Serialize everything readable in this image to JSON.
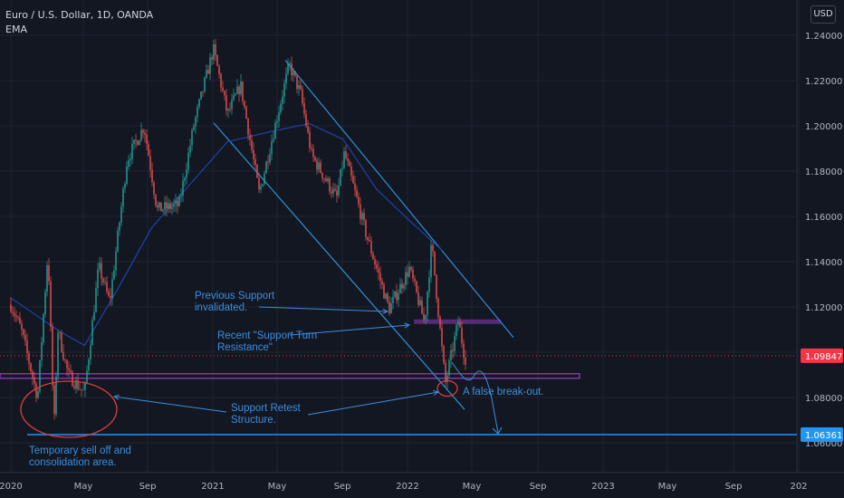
{
  "header": {
    "title": "Euro / U.S. Dollar, 1D, OANDA",
    "indicator": "EMA",
    "currency": "USD"
  },
  "chart_data": {
    "type": "candlestick",
    "title": "Euro / U.S. Dollar, 1D, OANDA",
    "x_ticks": [
      "2020",
      "May",
      "Sep",
      "2021",
      "May",
      "Sep",
      "2022",
      "May",
      "Sep",
      "2023",
      "May",
      "Sep",
      "202"
    ],
    "y_ticks": [
      "1.24000",
      "1.22000",
      "1.20000",
      "1.18000",
      "1.16000",
      "1.14000",
      "1.12000",
      "1.10000",
      "1.08000",
      "1.06000"
    ],
    "ylim": [
      1.052,
      1.246
    ],
    "last_price_label": "1.09847",
    "last_price": 1.09847,
    "horizontal_level_label": "1.06361",
    "horizontal_level": 1.06361,
    "price_path": [
      [
        "2020-01-01",
        1.121
      ],
      [
        "2020-01-20",
        1.11
      ],
      [
        "2020-02-19",
        1.08
      ],
      [
        "2020-03-09",
        1.145
      ],
      [
        "2020-03-20",
        1.066
      ],
      [
        "2020-03-27",
        1.11
      ],
      [
        "2020-04-15",
        1.09
      ],
      [
        "2020-05-15",
        1.082
      ],
      [
        "2020-06-10",
        1.138
      ],
      [
        "2020-06-30",
        1.122
      ],
      [
        "2020-08-01",
        1.185
      ],
      [
        "2020-09-01",
        1.2
      ],
      [
        "2020-09-25",
        1.163
      ],
      [
        "2020-11-04",
        1.165
      ],
      [
        "2020-12-01",
        1.2
      ],
      [
        "2021-01-06",
        1.234
      ],
      [
        "2021-02-01",
        1.205
      ],
      [
        "2021-02-25",
        1.218
      ],
      [
        "2021-03-31",
        1.17
      ],
      [
        "2021-05-25",
        1.227
      ],
      [
        "2021-06-15",
        1.214
      ],
      [
        "2021-07-05",
        1.187
      ],
      [
        "2021-08-20",
        1.168
      ],
      [
        "2021-09-03",
        1.188
      ],
      [
        "2021-10-12",
        1.153
      ],
      [
        "2021-11-24",
        1.119
      ],
      [
        "2021-12-31",
        1.137
      ],
      [
        "2022-01-28",
        1.113
      ],
      [
        "2022-02-10",
        1.148
      ],
      [
        "2022-03-07",
        1.086
      ],
      [
        "2022-03-31",
        1.114
      ],
      [
        "2022-04-12",
        1.097
      ],
      [
        "2022-04-14",
        1.098
      ]
    ],
    "ema_path": [
      [
        "2020-01-01",
        1.124
      ],
      [
        "2020-04-01",
        1.109
      ],
      [
        "2020-05-15",
        1.103
      ],
      [
        "2020-07-15",
        1.128
      ],
      [
        "2020-09-15",
        1.155
      ],
      [
        "2020-12-01",
        1.176
      ],
      [
        "2021-02-01",
        1.193
      ],
      [
        "2021-05-01",
        1.198
      ],
      [
        "2021-07-01",
        1.201
      ],
      [
        "2021-09-01",
        1.194
      ],
      [
        "2021-11-01",
        1.172
      ],
      [
        "2022-01-01",
        1.158
      ],
      [
        "2022-03-01",
        1.145
      ]
    ],
    "annotations": [
      {
        "name": "previous-support",
        "text": [
          "Previous Support",
          "invalidated."
        ]
      },
      {
        "name": "support-turn-resistance",
        "text": [
          "Recent \"Support Turn",
          "Resistance\""
        ]
      },
      {
        "name": "support-retest",
        "text": [
          "Support Retest",
          "Structure."
        ]
      },
      {
        "name": "temporary-selloff",
        "text": [
          "Temporary sell off and",
          "consolidation area."
        ]
      },
      {
        "name": "false-breakout",
        "text": [
          "A false break-out."
        ]
      }
    ],
    "colors": {
      "background": "#131722",
      "grid": "#1f2333",
      "up": "#26a69a",
      "down": "#ef5350",
      "ema": "#1f3fa0",
      "trendline": "#2f8fd6",
      "annotation": "#3a8ee0",
      "zone": "#8e3bbd",
      "level": "#2196f3",
      "last_price": "#f23645",
      "axis_text": "#b2b5be"
    }
  }
}
